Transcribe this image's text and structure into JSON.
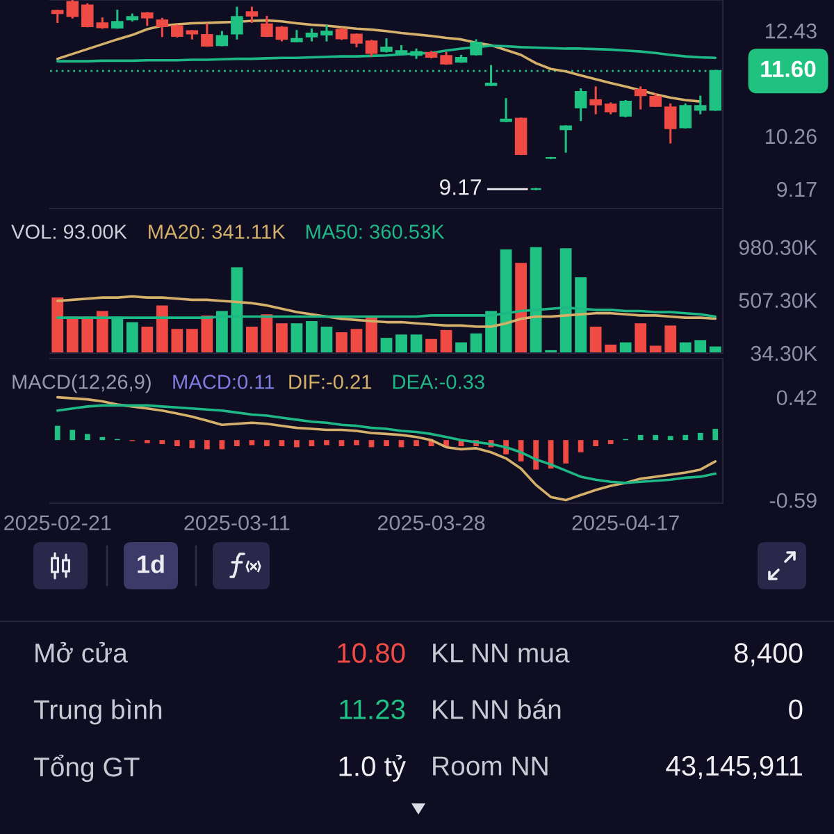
{
  "chart_data": [
    {
      "type": "candlestick",
      "categories": [
        "2025-02-21",
        null,
        null,
        null,
        null,
        null,
        null,
        null,
        null,
        null,
        null,
        null,
        "2025-03-11",
        null,
        null,
        null,
        null,
        null,
        null,
        null,
        null,
        null,
        null,
        null,
        null,
        "2025-03-28",
        null,
        null,
        null,
        null,
        null,
        null,
        null,
        null,
        null,
        null,
        null,
        null,
        "2025-04-17",
        null,
        null,
        null,
        null,
        null,
        null
      ],
      "ohlc": [
        [
          12.84,
          12.84,
          12.61,
          12.79
        ],
        [
          13.02,
          13.05,
          12.7,
          12.73
        ],
        [
          12.95,
          12.97,
          12.52,
          12.52
        ],
        [
          12.58,
          12.68,
          12.49,
          12.5
        ],
        [
          12.49,
          12.84,
          12.49,
          12.61
        ],
        [
          12.66,
          12.76,
          12.64,
          12.71
        ],
        [
          12.79,
          12.79,
          12.55,
          12.7
        ],
        [
          12.64,
          12.67,
          12.32,
          12.52
        ],
        [
          12.52,
          12.53,
          12.31,
          12.32
        ],
        [
          12.42,
          12.42,
          12.27,
          12.37
        ],
        [
          12.34,
          12.56,
          12.12,
          12.12
        ],
        [
          12.13,
          12.4,
          12.13,
          12.32
        ],
        [
          12.37,
          12.9,
          12.27,
          12.71
        ],
        [
          12.81,
          12.9,
          12.61,
          12.74
        ],
        [
          12.56,
          12.71,
          12.32,
          12.32
        ],
        [
          12.49,
          12.5,
          12.23,
          12.26
        ],
        [
          12.21,
          12.42,
          12.21,
          12.26
        ],
        [
          12.31,
          12.45,
          12.23,
          12.37
        ],
        [
          12.35,
          12.52,
          12.23,
          12.41
        ],
        [
          12.45,
          12.47,
          12.26,
          12.27
        ],
        [
          12.35,
          12.35,
          12.11,
          12.18
        ],
        [
          12.21,
          12.22,
          11.92,
          11.97
        ],
        [
          12.01,
          12.25,
          12.0,
          12.08
        ],
        [
          11.96,
          12.11,
          11.96,
          12.01
        ],
        [
          11.93,
          12.04,
          11.87,
          11.99
        ],
        [
          11.97,
          11.99,
          11.88,
          11.89
        ],
        [
          11.91,
          11.97,
          11.75,
          11.75
        ],
        [
          11.79,
          11.91,
          11.79,
          11.87
        ],
        [
          11.94,
          12.23,
          11.94,
          12.18
        ],
        [
          11.31,
          11.7,
          11.31,
          11.34
        ],
        [
          10.57,
          11.02,
          10.57,
          10.6
        ],
        [
          10.62,
          10.62,
          9.89,
          9.89
        ],
        [
          9.17,
          9.17,
          9.17,
          9.17
        ],
        [
          9.81,
          9.81,
          9.81,
          9.81
        ],
        [
          10.4,
          10.46,
          9.94,
          10.46
        ],
        [
          10.85,
          11.22,
          10.59,
          11.17
        ],
        [
          11.0,
          11.26,
          10.73,
          10.91
        ],
        [
          10.91,
          10.93,
          10.73,
          10.77
        ],
        [
          10.68,
          10.98,
          10.67,
          10.97
        ],
        [
          11.21,
          11.26,
          10.83,
          11.1
        ],
        [
          11.07,
          11.12,
          10.88,
          10.88
        ],
        [
          10.85,
          10.91,
          10.13,
          10.42
        ],
        [
          10.44,
          10.91,
          10.44,
          10.88
        ],
        [
          10.8,
          11.07,
          10.73,
          10.88
        ],
        [
          10.8,
          11.6,
          10.8,
          11.6
        ]
      ],
      "colors": [
        "#f04a45",
        "#f04a45",
        "#f04a45",
        "#f04a45",
        "#1fc282",
        "#1fc282",
        "#f04a45",
        "#f04a45",
        "#f04a45",
        "#f04a45",
        "#f04a45",
        "#1fc282",
        "#1fc282",
        "#f04a45",
        "#f04a45",
        "#f04a45",
        "#1fc282",
        "#1fc282",
        "#1fc282",
        "#f04a45",
        "#f04a45",
        "#f04a45",
        "#1fc282",
        "#1fc282",
        "#1fc282",
        "#f04a45",
        "#f04a45",
        "#1fc282",
        "#1fc282",
        "#1fc282",
        "#1fc282",
        "#f04a45",
        "#1fc282",
        "#1fc282",
        "#1fc282",
        "#1fc282",
        "#f04a45",
        "#f04a45",
        "#1fc282",
        "#f04a45",
        "#f04a45",
        "#f04a45",
        "#1fc282",
        "#1fc282",
        "#1fc282"
      ],
      "series": [
        {
          "type": "line",
          "color": "#d4b06a",
          "values": [
            11.85,
            11.95,
            12.05,
            12.15,
            12.25,
            12.34,
            12.46,
            12.53,
            12.56,
            12.58,
            12.59,
            12.6,
            12.61,
            12.63,
            12.64,
            12.62,
            12.58,
            12.55,
            12.53,
            12.5,
            12.47,
            12.45,
            12.42,
            12.38,
            12.35,
            12.32,
            12.28,
            12.25,
            12.18,
            12.13,
            12.03,
            11.93,
            11.76,
            11.64,
            11.59,
            11.51,
            11.43,
            11.35,
            11.28,
            11.2,
            11.12,
            11.05,
            11.0,
            10.97,
            null
          ]
        },
        {
          "type": "line",
          "color": "#1eb887",
          "values": [
            11.8,
            11.8,
            11.8,
            11.81,
            11.81,
            11.81,
            11.82,
            11.82,
            11.82,
            11.83,
            11.83,
            11.84,
            11.85,
            11.85,
            11.86,
            11.87,
            11.87,
            11.88,
            11.89,
            11.9,
            11.9,
            11.91,
            11.92,
            11.94,
            11.96,
            11.97,
            12.02,
            12.06,
            12.09,
            12.12,
            12.11,
            12.09,
            12.08,
            12.07,
            12.06,
            12.06,
            12.05,
            12.04,
            12.02,
            12.0,
            11.97,
            11.93,
            11.9,
            11.88,
            11.87
          ]
        }
      ],
      "ylim": [
        8.77,
        13.06
      ],
      "yticks": [
        9.17,
        10.26,
        12.43
      ],
      "ref_lines": [
        {
          "axis": "y",
          "value": 11.6,
          "label": "11.60",
          "color": "#1fc27f",
          "line_style": "dotted"
        }
      ],
      "annotations": [
        "9.17"
      ],
      "tick_labels": "y"
    },
    {
      "type": "bar",
      "categories": [
        "2025-02-21",
        null,
        null,
        null,
        null,
        null,
        null,
        null,
        null,
        null,
        null,
        null,
        "2025-03-11",
        null,
        null,
        null,
        null,
        null,
        null,
        null,
        null,
        null,
        null,
        null,
        null,
        "2025-03-28",
        null,
        null,
        null,
        null,
        null,
        null,
        null,
        null,
        null,
        null,
        null,
        null,
        "2025-04-17",
        null,
        null,
        null,
        null,
        null,
        null
      ],
      "series": [
        {
          "values": [
            530,
            360,
            360,
            410,
            360,
            310,
            270,
            460,
            250,
            250,
            370,
            410,
            800,
            270,
            380,
            300,
            300,
            320,
            270,
            220,
            250,
            360,
            170,
            200,
            200,
            160,
            240,
            130,
            210,
            410,
            960,
            840,
            980.3,
            60,
            970,
            710,
            270,
            110,
            130,
            300,
            100,
            280,
            130,
            150,
            93
          ],
          "colors": [
            "#f04a45",
            "#f04a45",
            "#f04a45",
            "#f04a45",
            "#1fc282",
            "#1fc282",
            "#f04a45",
            "#f04a45",
            "#f04a45",
            "#f04a45",
            "#f04a45",
            "#1fc282",
            "#1fc282",
            "#f04a45",
            "#f04a45",
            "#f04a45",
            "#1fc282",
            "#1fc282",
            "#1fc282",
            "#f04a45",
            "#f04a45",
            "#f04a45",
            "#1fc282",
            "#1fc282",
            "#1fc282",
            "#f04a45",
            "#f04a45",
            "#1fc282",
            "#1fc282",
            "#1fc282",
            "#1fc282",
            "#f04a45",
            "#1fc282",
            "#1fc282",
            "#1fc282",
            "#1fc282",
            "#f04a45",
            "#f04a45",
            "#1fc282",
            "#f04a45",
            "#f04a45",
            "#f04a45",
            "#1fc282",
            "#1fc282",
            "#1fc282"
          ]
        },
        {
          "type": "line",
          "name": "MA20: 341.11K",
          "color": "#d4b06a",
          "values": [
            500,
            510,
            520,
            530,
            530,
            540,
            530,
            530,
            520,
            510,
            510,
            500,
            490,
            480,
            460,
            430,
            400,
            380,
            360,
            340,
            330,
            320,
            310,
            310,
            300,
            290,
            280,
            280,
            270,
            270,
            300,
            340,
            360,
            360,
            370,
            380,
            390,
            390,
            380,
            370,
            370,
            360,
            350,
            350,
            341.11
          ]
        },
        {
          "type": "line",
          "name": "MA50: 360.53K",
          "color": "#1eb887",
          "values": [
            350,
            350,
            350,
            350,
            350,
            350,
            350,
            350,
            350,
            350,
            350,
            360,
            360,
            360,
            360,
            360,
            360,
            360,
            360,
            360,
            360,
            360,
            360,
            360,
            360,
            370,
            370,
            370,
            370,
            370,
            390,
            410,
            420,
            430,
            440,
            430,
            420,
            420,
            410,
            410,
            400,
            400,
            390,
            380,
            360.53
          ]
        }
      ],
      "ylim": [
        34.3,
        1325
      ],
      "yticks": [
        {
          "value": 34.3,
          "label": "34.30K"
        },
        {
          "value": 507.3,
          "label": "507.30K"
        },
        {
          "value": 980.3,
          "label": "980.30K"
        }
      ],
      "annotations": [
        "VOL: 93.00K"
      ],
      "legend": "top left",
      "tick_labels": "y"
    },
    {
      "type": "bar",
      "categories": [
        "2025-02-21",
        null,
        null,
        null,
        null,
        null,
        null,
        null,
        null,
        null,
        null,
        null,
        "2025-03-11",
        null,
        null,
        null,
        null,
        null,
        null,
        null,
        null,
        null,
        null,
        null,
        null,
        "2025-03-28",
        null,
        null,
        null,
        null,
        null,
        null,
        null,
        null,
        null,
        null,
        null,
        null,
        "2025-04-17",
        null,
        null,
        null,
        null,
        null,
        null
      ],
      "series": [
        {
          "values": [
            0.14,
            0.1,
            0.06,
            0.03,
            0.01,
            -0.01,
            -0.03,
            -0.04,
            -0.06,
            -0.08,
            -0.09,
            -0.09,
            -0.06,
            -0.05,
            -0.06,
            -0.06,
            -0.07,
            -0.06,
            -0.05,
            -0.06,
            -0.05,
            -0.07,
            -0.06,
            -0.07,
            -0.06,
            -0.06,
            -0.07,
            -0.06,
            -0.06,
            -0.07,
            -0.14,
            -0.21,
            -0.29,
            -0.28,
            -0.23,
            -0.12,
            -0.06,
            -0.04,
            0.01,
            0.05,
            0.05,
            0.04,
            0.05,
            0.07,
            0.11
          ],
          "colors": [
            "#1fc282",
            "#1fc282",
            "#1fc282",
            "#1fc282",
            "#1fc282",
            "#f04a45",
            "#f04a45",
            "#f04a45",
            "#f04a45",
            "#f04a45",
            "#f04a45",
            "#f04a45",
            "#f04a45",
            "#f04a45",
            "#f04a45",
            "#f04a45",
            "#f04a45",
            "#f04a45",
            "#f04a45",
            "#f04a45",
            "#f04a45",
            "#f04a45",
            "#f04a45",
            "#f04a45",
            "#f04a45",
            "#f04a45",
            "#f04a45",
            "#f04a45",
            "#f04a45",
            "#f04a45",
            "#f04a45",
            "#f04a45",
            "#f04a45",
            "#f04a45",
            "#f04a45",
            "#f04a45",
            "#f04a45",
            "#f04a45",
            "#1fc282",
            "#1fc282",
            "#1fc282",
            "#1fc282",
            "#1fc282",
            "#1fc282",
            "#1fc282"
          ]
        },
        {
          "type": "line",
          "name": "DIF:-0.21",
          "color": "#d4b06a",
          "values": [
            0.42,
            0.41,
            0.4,
            0.38,
            0.35,
            0.33,
            0.31,
            0.29,
            0.26,
            0.23,
            0.19,
            0.15,
            0.16,
            0.17,
            0.16,
            0.14,
            0.12,
            0.11,
            0.1,
            0.1,
            0.09,
            0.07,
            0.06,
            0.05,
            0.03,
            0.0,
            -0.07,
            -0.09,
            -0.08,
            -0.12,
            -0.18,
            -0.28,
            -0.44,
            -0.56,
            -0.59,
            -0.54,
            -0.49,
            -0.45,
            -0.42,
            -0.38,
            -0.36,
            -0.34,
            -0.32,
            -0.29,
            -0.21
          ]
        },
        {
          "type": "line",
          "name": "DEA:-0.33",
          "color": "#1eb887",
          "values": [
            0.29,
            0.31,
            0.33,
            0.34,
            0.34,
            0.34,
            0.34,
            0.33,
            0.32,
            0.31,
            0.3,
            0.29,
            0.27,
            0.25,
            0.24,
            0.22,
            0.2,
            0.18,
            0.17,
            0.15,
            0.14,
            0.12,
            0.11,
            0.09,
            0.08,
            0.06,
            0.03,
            0.0,
            -0.02,
            -0.04,
            -0.07,
            -0.12,
            -0.19,
            -0.24,
            -0.3,
            -0.36,
            -0.39,
            -0.41,
            -0.42,
            -0.41,
            -0.4,
            -0.39,
            -0.37,
            -0.36,
            -0.33
          ]
        }
      ],
      "ylim": [
        -0.62,
        0.8
      ],
      "yticks": [
        -0.59,
        0.42
      ],
      "annotations": [
        "MACD(12,26,9)",
        "MACD:0.11"
      ],
      "legend": "top"
    },
    {
      "type": "other",
      "categories": [
        "Mở cửa",
        "KL NN mua",
        "Trung bình",
        "KL NN bán",
        "Tổng GT",
        "Room NN"
      ],
      "value_labels": [
        "10.80",
        "8,400",
        "11.23",
        "0",
        "1.0 tỷ",
        "43,145,911"
      ],
      "colors": [
        "#f04a45",
        "#f0f0f4",
        "#1fc282",
        "#f0f0f4",
        "#f0f0f4",
        "#f0f0f4"
      ],
      "annotations": [
        "1d"
      ]
    }
  ]
}
